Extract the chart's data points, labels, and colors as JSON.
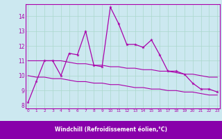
{
  "xlabel": "Windchill (Refroidissement éolien,°C)",
  "bg_color": "#cce8f0",
  "line_color": "#aa00aa",
  "label_bg": "#8800aa",
  "label_fg": "#ffffff",
  "x_hours": [
    0,
    1,
    2,
    3,
    4,
    5,
    6,
    7,
    8,
    9,
    10,
    11,
    12,
    13,
    14,
    15,
    16,
    17,
    18,
    19,
    20,
    21,
    22,
    23
  ],
  "main_series": [
    8.2,
    9.6,
    11.0,
    11.0,
    10.0,
    11.5,
    11.4,
    13.0,
    10.7,
    10.6,
    14.6,
    13.5,
    12.1,
    12.1,
    11.9,
    12.4,
    11.4,
    10.3,
    10.3,
    10.1,
    9.5,
    9.1,
    9.1,
    8.9
  ],
  "upper_line": [
    11.0,
    11.0,
    11.0,
    11.0,
    11.0,
    10.9,
    10.8,
    10.8,
    10.7,
    10.7,
    10.6,
    10.6,
    10.5,
    10.5,
    10.4,
    10.4,
    10.3,
    10.3,
    10.2,
    10.1,
    10.1,
    10.0,
    9.9,
    9.9
  ],
  "lower_line": [
    10.0,
    9.9,
    9.9,
    9.8,
    9.8,
    9.7,
    9.6,
    9.6,
    9.5,
    9.5,
    9.4,
    9.4,
    9.3,
    9.2,
    9.2,
    9.1,
    9.1,
    9.0,
    9.0,
    8.9,
    8.9,
    8.8,
    8.7,
    8.7
  ],
  "ylim": [
    7.8,
    14.8
  ],
  "yticks": [
    8,
    9,
    10,
    11,
    12,
    13,
    14
  ],
  "grid_color": "#aad8cc",
  "spine_color": "#aa00aa"
}
